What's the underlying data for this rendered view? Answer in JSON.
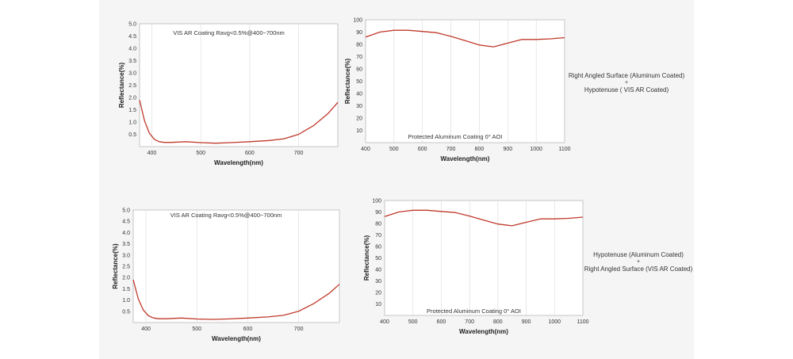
{
  "colors": {
    "curve": "#c0392b",
    "frame": "#b9b9b9",
    "grid": "#dadada",
    "text": "#333333",
    "panel_bg": "#f5f5f6"
  },
  "chart_data": [
    {
      "type": "line",
      "title": "VIS AR Coating Ravg<0.5%@400~700nm",
      "xlabel": "Wavelength(nm)",
      "ylabel": "Reflectance(%)",
      "xlim": [
        375,
        780
      ],
      "ylim": [
        0,
        5.0
      ],
      "xticks": [
        "400",
        "500",
        "600",
        "700"
      ],
      "yticks": [
        "0.5",
        "1.0",
        "1.5",
        "2.0",
        "2.5",
        "3.0",
        "3.5",
        "4.0",
        "4.5",
        "5.0"
      ],
      "grid": "vertical",
      "series": [
        {
          "x": [
            375,
            385,
            395,
            405,
            415,
            425,
            440,
            470,
            500,
            530,
            560,
            600,
            640,
            670,
            700,
            730,
            760,
            780
          ],
          "y": [
            1.9,
            1.05,
            0.55,
            0.3,
            0.2,
            0.17,
            0.17,
            0.2,
            0.16,
            0.14,
            0.16,
            0.2,
            0.25,
            0.32,
            0.5,
            0.85,
            1.35,
            1.8
          ]
        }
      ]
    },
    {
      "type": "line",
      "title": "Protected Aluminum Coating  0°  AOI",
      "xlabel": "Wavelength(nm)",
      "ylabel": "Reflectance(%)",
      "xlim": [
        400,
        1100
      ],
      "ylim": [
        0,
        100
      ],
      "xticks": [
        "400",
        "500",
        "600",
        "700",
        "800",
        "900",
        "1000",
        "1100"
      ],
      "yticks": [
        "10",
        "20",
        "30",
        "40",
        "50",
        "60",
        "70",
        "80",
        "90",
        "100"
      ],
      "grid": "vertical",
      "series": [
        {
          "x": [
            400,
            450,
            500,
            550,
            600,
            650,
            700,
            750,
            800,
            850,
            900,
            950,
            1000,
            1050,
            1100
          ],
          "y": [
            86,
            90,
            91.5,
            91.5,
            90.5,
            89.5,
            86.5,
            83,
            79.5,
            78,
            81,
            84,
            84,
            84.5,
            85.5
          ]
        }
      ]
    },
    {
      "type": "line",
      "title": "VIS AR Coating Ravg<0.5%@400~700nm",
      "xlabel": "Wavelength(nm)",
      "ylabel": "Reflectance(%)",
      "xlim": [
        375,
        780
      ],
      "ylim": [
        0,
        5.0
      ],
      "xticks": [
        "400",
        "500",
        "600",
        "700"
      ],
      "yticks": [
        "0.5",
        "1.0",
        "1.5",
        "2.0",
        "2.5",
        "3.0",
        "3.5",
        "4.0",
        "4.5",
        "5.0"
      ],
      "grid": "vertical",
      "series": [
        {
          "x": [
            375,
            385,
            395,
            405,
            415,
            425,
            440,
            470,
            500,
            530,
            560,
            600,
            640,
            670,
            700,
            730,
            760,
            780
          ],
          "y": [
            1.9,
            1.05,
            0.55,
            0.3,
            0.2,
            0.17,
            0.17,
            0.2,
            0.16,
            0.14,
            0.16,
            0.2,
            0.25,
            0.32,
            0.5,
            0.85,
            1.3,
            1.7
          ]
        }
      ]
    },
    {
      "type": "line",
      "title": "Protected Aluminum Coating  0°  AOI",
      "xlabel": "Wavelength(nm)",
      "ylabel": "Reflectance(%)",
      "xlim": [
        400,
        1100
      ],
      "ylim": [
        0,
        100
      ],
      "xticks": [
        "400",
        "500",
        "600",
        "700",
        "800",
        "900",
        "1000",
        "1100"
      ],
      "yticks": [
        "10",
        "20",
        "30",
        "40",
        "50",
        "60",
        "70",
        "80",
        "90",
        "100"
      ],
      "grid": "vertical",
      "series": [
        {
          "x": [
            400,
            450,
            500,
            550,
            600,
            650,
            700,
            750,
            800,
            850,
            900,
            950,
            1000,
            1050,
            1100
          ],
          "y": [
            86,
            90,
            91.5,
            91.5,
            90.5,
            89.5,
            86.5,
            83,
            79.5,
            78,
            81,
            84,
            84,
            84.5,
            85.5
          ]
        }
      ]
    }
  ],
  "captions": {
    "top": {
      "line1": "Right Angled Surface (Aluminum Coated)",
      "plus": "+",
      "line2": "Hypotenuse   ( VIS AR Coated)"
    },
    "bottom": {
      "line1": "Hypotenuse (Aluminum Coated)",
      "plus": "+",
      "line2": "Right Angled Surface (VIS AR Coated)"
    }
  }
}
